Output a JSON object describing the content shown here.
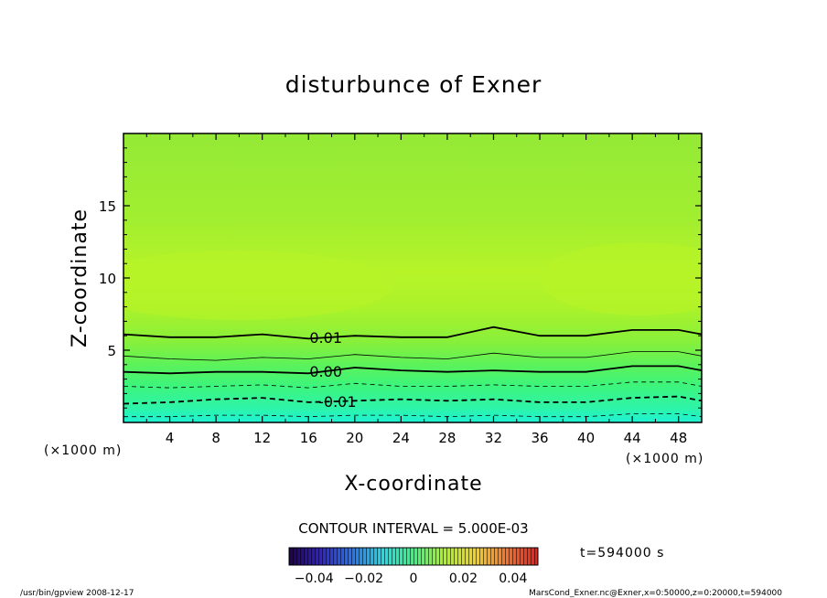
{
  "chart_data": {
    "type": "heatmap",
    "title": "disturbunce of Exner",
    "xlabel": "X-coordinate",
    "ylabel": "Z-coordinate",
    "x_unit": "(×1000 m)",
    "y_unit": "(×1000 m)",
    "xlim": [
      0,
      50
    ],
    "ylim": [
      0,
      20
    ],
    "x_ticks": [
      "4",
      "8",
      "12",
      "16",
      "20",
      "24",
      "28",
      "32",
      "36",
      "40",
      "44",
      "48"
    ],
    "y_ticks": [
      "5",
      "10",
      "15"
    ],
    "contour_interval_label": "CONTOUR INTERVAL = 5.000E-03",
    "time_label": "t=594000 s",
    "colorbar_range": [
      -0.05,
      0.05
    ],
    "colorbar_ticks": [
      "−0.04",
      "−0.02",
      "0",
      "0.02",
      "0.04"
    ],
    "contours": [
      {
        "level": 0.01,
        "label": "0.01",
        "style": "solid",
        "heavy": true,
        "x": [
          0,
          4,
          8,
          10,
          12,
          16,
          20,
          24,
          28,
          32,
          36,
          40,
          44,
          48,
          50
        ],
        "z": [
          6.1,
          5.9,
          5.9,
          6.0,
          6.1,
          5.8,
          6.0,
          5.9,
          5.9,
          6.6,
          6.0,
          6.0,
          6.4,
          6.4,
          6.1
        ]
      },
      {
        "level": 0.005,
        "label": "",
        "style": "solid",
        "heavy": false,
        "x": [
          0,
          4,
          8,
          12,
          16,
          20,
          24,
          28,
          32,
          36,
          40,
          44,
          48,
          50
        ],
        "z": [
          4.6,
          4.4,
          4.3,
          4.5,
          4.4,
          4.7,
          4.5,
          4.4,
          4.8,
          4.5,
          4.5,
          4.9,
          4.9,
          4.6
        ]
      },
      {
        "level": 0.0,
        "label": "0.00",
        "style": "solid",
        "heavy": true,
        "x": [
          0,
          4,
          8,
          12,
          16,
          20,
          24,
          28,
          32,
          36,
          40,
          44,
          48,
          50
        ],
        "z": [
          3.5,
          3.4,
          3.5,
          3.5,
          3.4,
          3.8,
          3.6,
          3.5,
          3.6,
          3.5,
          3.5,
          3.9,
          3.9,
          3.6
        ]
      },
      {
        "level": -0.005,
        "label": "",
        "style": "dashed",
        "heavy": false,
        "x": [
          0,
          4,
          8,
          12,
          16,
          20,
          24,
          28,
          32,
          36,
          40,
          44,
          48,
          50
        ],
        "z": [
          2.5,
          2.4,
          2.5,
          2.6,
          2.4,
          2.7,
          2.5,
          2.5,
          2.6,
          2.5,
          2.5,
          2.8,
          2.8,
          2.5
        ]
      },
      {
        "level": -0.01,
        "label": "-0.01",
        "style": "dashed",
        "heavy": true,
        "x": [
          0,
          4,
          8,
          12,
          16,
          20,
          24,
          28,
          32,
          36,
          40,
          44,
          48,
          50
        ],
        "z": [
          1.3,
          1.4,
          1.6,
          1.7,
          1.4,
          1.5,
          1.6,
          1.5,
          1.6,
          1.4,
          1.4,
          1.7,
          1.8,
          1.5
        ]
      },
      {
        "level": -0.015,
        "label": "",
        "style": "dashed",
        "heavy": false,
        "x": [
          0,
          4,
          8,
          12,
          16,
          20,
          24,
          28,
          32,
          36,
          40,
          44,
          48,
          50
        ],
        "z": [
          0.4,
          0.4,
          0.5,
          0.5,
          0.4,
          0.5,
          0.5,
          0.4,
          0.5,
          0.4,
          0.4,
          0.6,
          0.6,
          0.4
        ]
      }
    ]
  },
  "footer": {
    "left": "/usr/bin/gpview   2008-12-17",
    "right": "MarsCond_Exner.nc@Exner,x=0:50000,z=0:20000,t=594000"
  },
  "colors": {
    "bands": [
      "#1ef2d4",
      "#28f4a0",
      "#3ef47a",
      "#5ef256",
      "#7ef03c",
      "#9cf030",
      "#b4f22a",
      "#a6ee2e",
      "#96ec32"
    ]
  }
}
